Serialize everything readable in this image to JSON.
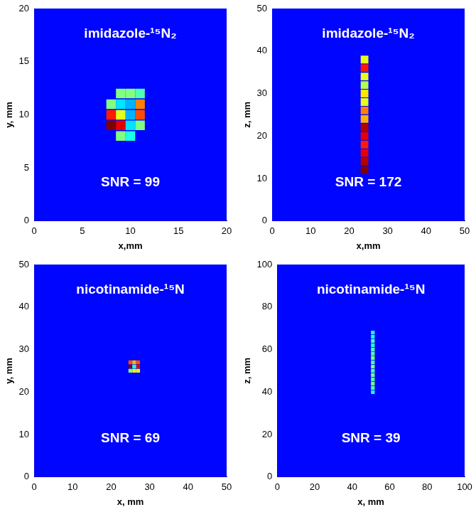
{
  "chart_data": [
    {
      "type": "heatmap",
      "title": "imidazole-¹⁵N₂",
      "annotation": "SNR = 99",
      "x_label": "x,mm",
      "y_label": "y, mm",
      "xlim": [
        0,
        20
      ],
      "ylim": [
        0,
        20
      ],
      "xticks": [
        0,
        5,
        10,
        15,
        20
      ],
      "yticks": [
        0,
        5,
        10,
        15,
        20
      ],
      "grid": false,
      "zlim": [
        0,
        1
      ],
      "cell_size": 1,
      "cells": [
        [
          8,
          9,
          1.0
        ],
        [
          9,
          9,
          0.9
        ],
        [
          8,
          10,
          0.85
        ],
        [
          9,
          10,
          0.6
        ],
        [
          8,
          11,
          0.5
        ],
        [
          9,
          12,
          0.5
        ],
        [
          10,
          12,
          0.5
        ],
        [
          11,
          12,
          0.45
        ],
        [
          11,
          11,
          0.75
        ],
        [
          11,
          10,
          0.8
        ],
        [
          11,
          9,
          0.5
        ],
        [
          10,
          8,
          0.4
        ],
        [
          9,
          8,
          0.5
        ],
        [
          10,
          10,
          0.3
        ],
        [
          10,
          9,
          0.35
        ],
        [
          10,
          11,
          0.3
        ],
        [
          9,
          11,
          0.35
        ]
      ]
    },
    {
      "type": "heatmap",
      "title": "imidazole-¹⁵N₂",
      "annotation": "SNR = 172",
      "x_label": "x,mm",
      "y_label": "z, mm",
      "xlim": [
        0,
        50
      ],
      "ylim": [
        0,
        50
      ],
      "xticks": [
        0,
        10,
        20,
        30,
        40,
        50
      ],
      "yticks": [
        0,
        10,
        20,
        30,
        40,
        50
      ],
      "grid": false,
      "zlim": [
        0,
        1
      ],
      "cell_size": 2,
      "cells": [
        [
          24,
          12,
          1.0
        ],
        [
          24,
          14,
          0.95
        ],
        [
          24,
          16,
          0.9
        ],
        [
          24,
          18,
          0.85
        ],
        [
          24,
          20,
          0.9
        ],
        [
          24,
          22,
          0.95
        ],
        [
          24,
          24,
          0.7
        ],
        [
          24,
          26,
          0.75
        ],
        [
          24,
          28,
          0.6
        ],
        [
          24,
          30,
          0.65
        ],
        [
          24,
          32,
          0.55
        ],
        [
          24,
          34,
          0.6
        ],
        [
          24,
          36,
          0.85
        ],
        [
          24,
          38,
          0.6
        ]
      ]
    },
    {
      "type": "heatmap",
      "title": "nicotinamide-¹⁵N",
      "annotation": "SNR = 69",
      "x_label": "x, mm",
      "y_label": "y, mm",
      "xlim": [
        0,
        50
      ],
      "ylim": [
        0,
        50
      ],
      "xticks": [
        0,
        10,
        20,
        30,
        40,
        50
      ],
      "yticks": [
        0,
        10,
        20,
        30,
        40,
        50
      ],
      "grid": false,
      "zlim": [
        0,
        1
      ],
      "cell_size": 1,
      "cells": [
        [
          25,
          26,
          1.0
        ],
        [
          25,
          27,
          0.8
        ],
        [
          26,
          27,
          0.7
        ],
        [
          27,
          27,
          0.8
        ],
        [
          27,
          26,
          0.9
        ],
        [
          26,
          25,
          0.6
        ],
        [
          25,
          25,
          0.5
        ],
        [
          27,
          25,
          0.6
        ],
        [
          26,
          26,
          0.4
        ]
      ]
    },
    {
      "type": "heatmap",
      "title": "nicotinamide-¹⁵N",
      "annotation": "SNR = 39",
      "x_label": "x, mm",
      "y_label": "z, mm",
      "xlim": [
        0,
        100
      ],
      "ylim": [
        0,
        100
      ],
      "xticks": [
        0,
        20,
        40,
        60,
        80,
        100
      ],
      "yticks": [
        0,
        20,
        40,
        60,
        80,
        100
      ],
      "grid": false,
      "zlim": [
        0,
        1
      ],
      "cell_size": 2,
      "cells": [
        [
          51,
          40,
          0.4
        ],
        [
          51,
          42,
          0.45
        ],
        [
          51,
          44,
          0.5
        ],
        [
          51,
          46,
          0.45
        ],
        [
          51,
          48,
          0.5
        ],
        [
          51,
          50,
          0.45
        ],
        [
          51,
          52,
          0.5
        ],
        [
          51,
          54,
          0.45
        ],
        [
          51,
          56,
          0.5
        ],
        [
          51,
          58,
          0.45
        ],
        [
          51,
          60,
          0.45
        ],
        [
          51,
          62,
          0.4
        ],
        [
          51,
          64,
          0.45
        ],
        [
          51,
          66,
          0.4
        ],
        [
          51,
          68,
          0.4
        ]
      ]
    }
  ]
}
